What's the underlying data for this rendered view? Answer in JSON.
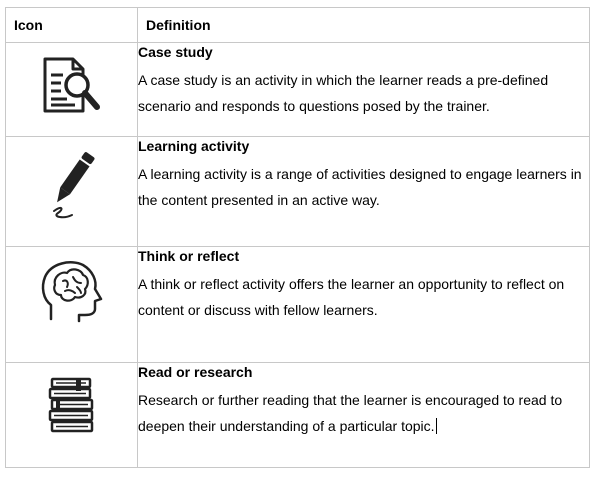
{
  "table": {
    "header": {
      "icon": "Icon",
      "definition": "Definition"
    },
    "rows": [
      {
        "icon": "case-study-icon",
        "title": "Case study",
        "body": "A case study is an activity in which the learner reads a pre-defined scenario and responds to questions posed by the trainer."
      },
      {
        "icon": "pencil-icon",
        "title": "Learning activity",
        "body": "A learning activity is a range of activities designed to engage learners in the content presented in an active way."
      },
      {
        "icon": "brain-head-icon",
        "title": "Think or reflect",
        "body": "A think or reflect activity offers the learner an opportunity to reflect on content or discuss with fellow learners."
      },
      {
        "icon": "books-stack-icon",
        "title": "Read or research",
        "body": "Research or further reading that the learner is encouraged to read to deepen their understanding of a particular topic."
      }
    ]
  }
}
